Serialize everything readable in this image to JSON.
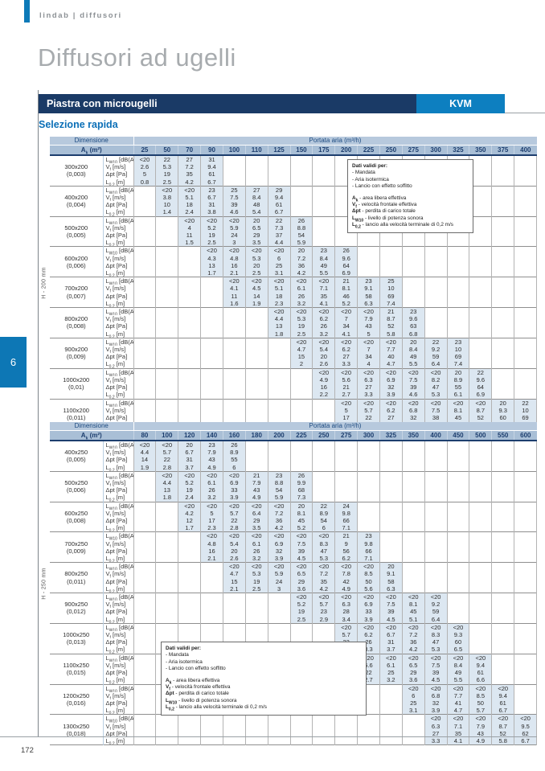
{
  "page": {
    "brand": "lindab | diffusori",
    "title": "Diffusori ad ugelli",
    "bar_label": "Piastra con microugelli",
    "model": "KVM",
    "section_title": "Selezione rapida",
    "side_tab": "6",
    "page_number": "172"
  },
  "colors": {
    "navy": "#1a3a66",
    "lindab_blue": "#0d7fc0",
    "header_bg_1": "#b7c9dd",
    "header_bg_2": "#a9bfd6",
    "cell_fill": "#dce7f1"
  },
  "note": {
    "title": "Dati validi per:",
    "conditions": [
      "- Mandata",
      "- Aria isotermica",
      "- Lancio con effetto soffitto"
    ],
    "legend": [
      {
        "base": "A",
        "sub": "k",
        "text": "- area libera effettiva"
      },
      {
        "base": "V",
        "sub": "f",
        "text": "- velocità frontale effettiva"
      },
      {
        "base": "Δpt",
        "sub": "",
        "text": "- perdita di carico totale"
      },
      {
        "base": "L",
        "sub": "W10",
        "text": "- livello di potenza sonora"
      },
      {
        "base": "L",
        "sub": "0,2",
        "text": "- lancio alla velocità terminale di 0,2 m/s"
      }
    ]
  },
  "metric_labels": [
    {
      "base": "L",
      "sub": "W10",
      "rest": " [dB(A)]"
    },
    {
      "base": "V",
      "sub": "f",
      "rest": " [m/s]"
    },
    {
      "base": "Δpt",
      "sub": "",
      "rest": " [Pa]"
    },
    {
      "base": "L",
      "sub": "0,2",
      "rest": " [m]"
    }
  ],
  "tables": [
    {
      "h_label": "H - 200 mm",
      "headers": {
        "dimension": "Dimensione",
        "area": {
          "base": "A",
          "sub": "k",
          "rest": " (m²)"
        },
        "portata": "Portata aria (m³/h)"
      },
      "columns": [
        "25",
        "50",
        "70",
        "90",
        "100",
        "110",
        "125",
        "150",
        "175",
        "200",
        "225",
        "250",
        "275",
        "300",
        "325",
        "350",
        "375",
        "400"
      ],
      "rows": [
        {
          "dim": "300x200",
          "area": "(0,003)",
          "start": 0,
          "values": {
            "lw10": [
              "<20",
              "22",
              "27",
              "31"
            ],
            "vf": [
              "2.6",
              "5.3",
              "7.2",
              "9.4"
            ],
            "dpt": [
              "5",
              "19",
              "35",
              "61"
            ],
            "l02": [
              "0.8",
              "2.5",
              "4.2",
              "6.7"
            ]
          }
        },
        {
          "dim": "400x200",
          "area": "(0,004)",
          "start": 1,
          "values": {
            "lw10": [
              "<20",
              "<20",
              "23",
              "25",
              "27",
              "29"
            ],
            "vf": [
              "3.8",
              "5.1",
              "6.7",
              "7.5",
              "8.4",
              "9.4"
            ],
            "dpt": [
              "10",
              "18",
              "31",
              "39",
              "48",
              "61"
            ],
            "l02": [
              "1.4",
              "2.4",
              "3.8",
              "4.6",
              "5.4",
              "6.7"
            ]
          }
        },
        {
          "dim": "500x200",
          "area": "(0,005)",
          "start": 2,
          "values": {
            "lw10": [
              "<20",
              "<20",
              "<20",
              "20",
              "22",
              "26"
            ],
            "vf": [
              "4",
              "5.2",
              "5.9",
              "6.5",
              "7.3",
              "8.8"
            ],
            "dpt": [
              "11",
              "19",
              "24",
              "29",
              "37",
              "54"
            ],
            "l02": [
              "1.5",
              "2.5",
              "3",
              "3.5",
              "4.4",
              "5.9"
            ]
          }
        },
        {
          "dim": "600x200",
          "area": "(0,006)",
          "start": 3,
          "values": {
            "lw10": [
              "<20",
              "<20",
              "<20",
              "<20",
              "20",
              "23",
              "26"
            ],
            "vf": [
              "4.3",
              "4.8",
              "5.3",
              "6",
              "7.2",
              "8.4",
              "9.6"
            ],
            "dpt": [
              "13",
              "16",
              "20",
              "25",
              "36",
              "49",
              "64"
            ],
            "l02": [
              "1.7",
              "2.1",
              "2.5",
              "3.1",
              "4.2",
              "5.5",
              "6.9"
            ]
          }
        },
        {
          "dim": "700x200",
          "area": "(0,007)",
          "start": 4,
          "values": {
            "lw10": [
              "<20",
              "<20",
              "<20",
              "<20",
              "<20",
              "21",
              "23",
              "25"
            ],
            "vf": [
              "4.1",
              "4.5",
              "5.1",
              "6.1",
              "7.1",
              "8.1",
              "9.1",
              "10"
            ],
            "dpt": [
              "11",
              "14",
              "18",
              "26",
              "35",
              "46",
              "58",
              "69"
            ],
            "l02": [
              "1.6",
              "1.9",
              "2.3",
              "3.2",
              "4.1",
              "5.2",
              "6.3",
              "7.4"
            ]
          }
        },
        {
          "dim": "800x200",
          "area": "(0,008)",
          "start": 6,
          "values": {
            "lw10": [
              "<20",
              "<20",
              "<20",
              "<20",
              "<20",
              "21",
              "23"
            ],
            "vf": [
              "4.4",
              "5.3",
              "6.2",
              "7",
              "7.9",
              "8.7",
              "9.6"
            ],
            "dpt": [
              "13",
              "19",
              "26",
              "34",
              "43",
              "52",
              "63"
            ],
            "l02": [
              "1.8",
              "2.5",
              "3.2",
              "4.1",
              "5",
              "5.8",
              "6.8"
            ]
          }
        },
        {
          "dim": "900x200",
          "area": "(0,009)",
          "start": 7,
          "values": {
            "lw10": [
              "<20",
              "<20",
              "<20",
              "<20",
              "<20",
              "20",
              "22",
              "23"
            ],
            "vf": [
              "4.7",
              "5.4",
              "6.2",
              "7",
              "7.7",
              "8.4",
              "9.2",
              "10"
            ],
            "dpt": [
              "15",
              "20",
              "27",
              "34",
              "40",
              "49",
              "59",
              "69"
            ],
            "l02": [
              "2",
              "2.6",
              "3.3",
              "4",
              "4.7",
              "5.5",
              "6.4",
              "7.4"
            ]
          }
        },
        {
          "dim": "1000x200",
          "area": "(0,01)",
          "start": 8,
          "values": {
            "lw10": [
              "<20",
              "<20",
              "<20",
              "<20",
              "<20",
              "<20",
              "20",
              "22"
            ],
            "vf": [
              "4.9",
              "5.6",
              "6.3",
              "6.9",
              "7.5",
              "8.2",
              "8.9",
              "9.6"
            ],
            "dpt": [
              "16",
              "21",
              "27",
              "32",
              "39",
              "47",
              "55",
              "64"
            ],
            "l02": [
              "2.2",
              "2.7",
              "3.3",
              "3.9",
              "4.6",
              "5.3",
              "6.1",
              "6.9"
            ]
          }
        },
        {
          "dim": "1100x200",
          "area": "(0,011)",
          "start": 9,
          "values": {
            "lw10": [
              "<20",
              "<20",
              "<20",
              "<20",
              "<20",
              "<20",
              "<20",
              "20",
              "22"
            ],
            "vf": [
              "5",
              "5.7",
              "6.2",
              "6.8",
              "7.5",
              "8.1",
              "8.7",
              "9.3",
              "10"
            ],
            "dpt": [
              "17",
              "22",
              "27",
              "32",
              "38",
              "45",
              "52",
              "60",
              "69"
            ],
            "l02": [
              "2.3",
              "2.8",
              "3.3",
              "3.9",
              "4.5",
              "5.1",
              "5.8",
              "6.6",
              "7.3"
            ]
          }
        }
      ]
    },
    {
      "h_label": "H - 250 mm",
      "headers": {
        "dimension": "Dimensione",
        "area": {
          "base": "A",
          "sub": "k",
          "rest": " (m²)"
        },
        "portata": "Portata aria (m³/h)"
      },
      "columns": [
        "80",
        "100",
        "120",
        "140",
        "160",
        "180",
        "200",
        "225",
        "250",
        "275",
        "300",
        "325",
        "350",
        "400",
        "450",
        "500",
        "550",
        "600"
      ],
      "rows": [
        {
          "dim": "400x250",
          "area": "(0,005)",
          "start": 0,
          "values": {
            "lw10": [
              "<20",
              "<20",
              "20",
              "23",
              "26"
            ],
            "vf": [
              "4.4",
              "5.7",
              "6.7",
              "7.9",
              "8.9"
            ],
            "dpt": [
              "14",
              "22",
              "31",
              "43",
              "55"
            ],
            "l02": [
              "1.9",
              "2.8",
              "3.7",
              "4.9",
              "6"
            ]
          }
        },
        {
          "dim": "500x250",
          "area": "(0,006)",
          "start": 1,
          "values": {
            "lw10": [
              "<20",
              "<20",
              "<20",
              "<20",
              "21",
              "23",
              "26"
            ],
            "vf": [
              "4.4",
              "5.2",
              "6.1",
              "6.9",
              "7.9",
              "8.8",
              "9.9"
            ],
            "dpt": [
              "13",
              "19",
              "26",
              "33",
              "43",
              "54",
              "68"
            ],
            "l02": [
              "1.8",
              "2.4",
              "3.2",
              "3.9",
              "4.9",
              "5.9",
              "7.3"
            ]
          }
        },
        {
          "dim": "600x250",
          "area": "(0,008)",
          "start": 2,
          "values": {
            "lw10": [
              "<20",
              "<20",
              "<20",
              "<20",
              "<20",
              "20",
              "22",
              "24"
            ],
            "vf": [
              "4.2",
              "5",
              "5.7",
              "6.4",
              "7.2",
              "8.1",
              "8.9",
              "9.8"
            ],
            "dpt": [
              "12",
              "17",
              "22",
              "29",
              "36",
              "45",
              "54",
              "66"
            ],
            "l02": [
              "1.7",
              "2.3",
              "2.8",
              "3.5",
              "4.2",
              "5.2",
              "6",
              "7.1"
            ]
          }
        },
        {
          "dim": "700x250",
          "area": "(0,009)",
          "start": 3,
          "values": {
            "lw10": [
              "<20",
              "<20",
              "<20",
              "<20",
              "<20",
              "<20",
              "21",
              "23"
            ],
            "vf": [
              "4.8",
              "5.4",
              "6.1",
              "6.9",
              "7.5",
              "8.3",
              "9",
              "9.8"
            ],
            "dpt": [
              "16",
              "20",
              "26",
              "32",
              "39",
              "47",
              "56",
              "66"
            ],
            "l02": [
              "2.1",
              "2.6",
              "3.2",
              "3.9",
              "4.5",
              "5.3",
              "6.2",
              "7.1"
            ]
          }
        },
        {
          "dim": "800x250",
          "area": "(0,011)",
          "start": 4,
          "values": {
            "lw10": [
              "<20",
              "<20",
              "<20",
              "<20",
              "<20",
              "<20",
              "<20",
              "20"
            ],
            "vf": [
              "4.7",
              "5.3",
              "5.9",
              "6.5",
              "7.2",
              "7.8",
              "8.5",
              "9.1"
            ],
            "dpt": [
              "15",
              "19",
              "24",
              "29",
              "35",
              "42",
              "50",
              "58"
            ],
            "l02": [
              "2.1",
              "2.5",
              "3",
              "3.6",
              "4.2",
              "4.9",
              "5.6",
              "6.3"
            ]
          }
        },
        {
          "dim": "900x250",
          "area": "(0,012)",
          "start": 7,
          "values": {
            "lw10": [
              "<20",
              "<20",
              "<20",
              "<20",
              "<20",
              "<20",
              "<20"
            ],
            "vf": [
              "5.2",
              "5.7",
              "6.3",
              "6.9",
              "7.5",
              "8.1",
              "9.2"
            ],
            "dpt": [
              "19",
              "23",
              "28",
              "33",
              "39",
              "45",
              "59"
            ],
            "l02": [
              "2.5",
              "2.9",
              "3.4",
              "3.9",
              "4.5",
              "5.1",
              "6.4"
            ]
          }
        },
        {
          "dim": "1000x250",
          "area": "(0,013)",
          "start": 9,
          "values": {
            "lw10": [
              "<20",
              "<20",
              "<20",
              "<20",
              "<20",
              "<20"
            ],
            "vf": [
              "5.7",
              "6.2",
              "6.7",
              "7.2",
              "8.3",
              "9.3"
            ],
            "dpt": [
              "22",
              "26",
              "31",
              "36",
              "47",
              "60"
            ],
            "l02": [
              "2.8",
              "3.3",
              "3.7",
              "4.2",
              "5.3",
              "6.5"
            ]
          }
        },
        {
          "dim": "1100x250",
          "area": "(0,015)",
          "start": 10,
          "values": {
            "lw10": [
              "<20",
              "<20",
              "<20",
              "<20",
              "<20",
              "<20"
            ],
            "vf": [
              "5.6",
              "6.1",
              "6.5",
              "7.5",
              "8.4",
              "9.4"
            ],
            "dpt": [
              "22",
              "25",
              "29",
              "39",
              "49",
              "61"
            ],
            "l02": [
              "2.7",
              "3.2",
              "3.6",
              "4.5",
              "5.5",
              "6.6"
            ]
          }
        },
        {
          "dim": "1200x250",
          "area": "(0,016)",
          "start": 12,
          "values": {
            "lw10": [
              "<20",
              "<20",
              "<20",
              "<20",
              "<20"
            ],
            "vf": [
              "6",
              "6.8",
              "7.7",
              "8.5",
              "9.4"
            ],
            "dpt": [
              "25",
              "32",
              "41",
              "50",
              "61"
            ],
            "l02": [
              "3.1",
              "3.9",
              "4.7",
              "5.7",
              "6.7"
            ]
          }
        },
        {
          "dim": "1300x250",
          "area": "(0,018)",
          "start": 13,
          "values": {
            "lw10": [
              "<20",
              "<20",
              "<20",
              "<20",
              "<20"
            ],
            "vf": [
              "6.3",
              "7.1",
              "7.9",
              "8.7",
              "9.5"
            ],
            "dpt": [
              "27",
              "35",
              "43",
              "52",
              "62"
            ],
            "l02": [
              "3.3",
              "4.1",
              "4.9",
              "5.8",
              "6.7"
            ]
          }
        }
      ]
    }
  ]
}
